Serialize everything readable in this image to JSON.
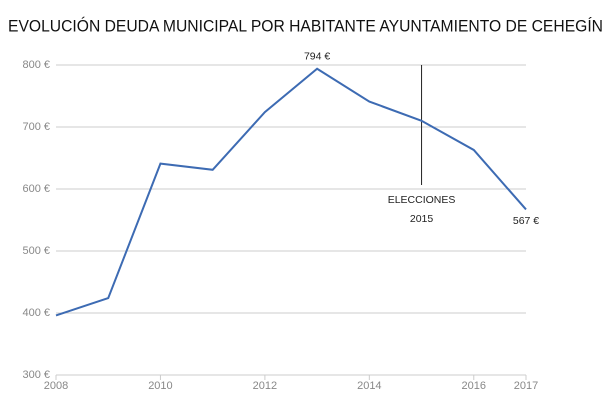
{
  "chart_data": {
    "type": "line",
    "title": "EVOLUCIÓN DEUDA MUNICIPAL POR HABITANTE AYUNTAMIENTO DE CEHEGÍN",
    "x": [
      2008,
      2009,
      2010,
      2011,
      2012,
      2013,
      2014,
      2015,
      2016,
      2017
    ],
    "values": [
      396,
      424,
      641,
      631,
      724,
      794,
      741,
      710,
      663,
      567
    ],
    "value_labels": [
      null,
      null,
      null,
      null,
      null,
      "794 €",
      null,
      null,
      null,
      "567 €"
    ],
    "color": "#3d6bb3",
    "xlim": [
      2008,
      2017
    ],
    "xticks": [
      2008,
      2010,
      2012,
      2014,
      2016,
      2017
    ],
    "ylim": [
      300,
      800
    ],
    "yticks": [
      {
        "value": 300,
        "label": "300 €"
      },
      {
        "value": 400,
        "label": "400 €"
      },
      {
        "value": 500,
        "label": "500 €"
      },
      {
        "value": 600,
        "label": "600 €"
      },
      {
        "value": 700,
        "label": "700 €"
      },
      {
        "value": 800,
        "label": "800 €"
      }
    ],
    "grid": true,
    "annotation": {
      "x": 2015,
      "lines": [
        "ELECCIONES",
        "2015"
      ]
    }
  }
}
